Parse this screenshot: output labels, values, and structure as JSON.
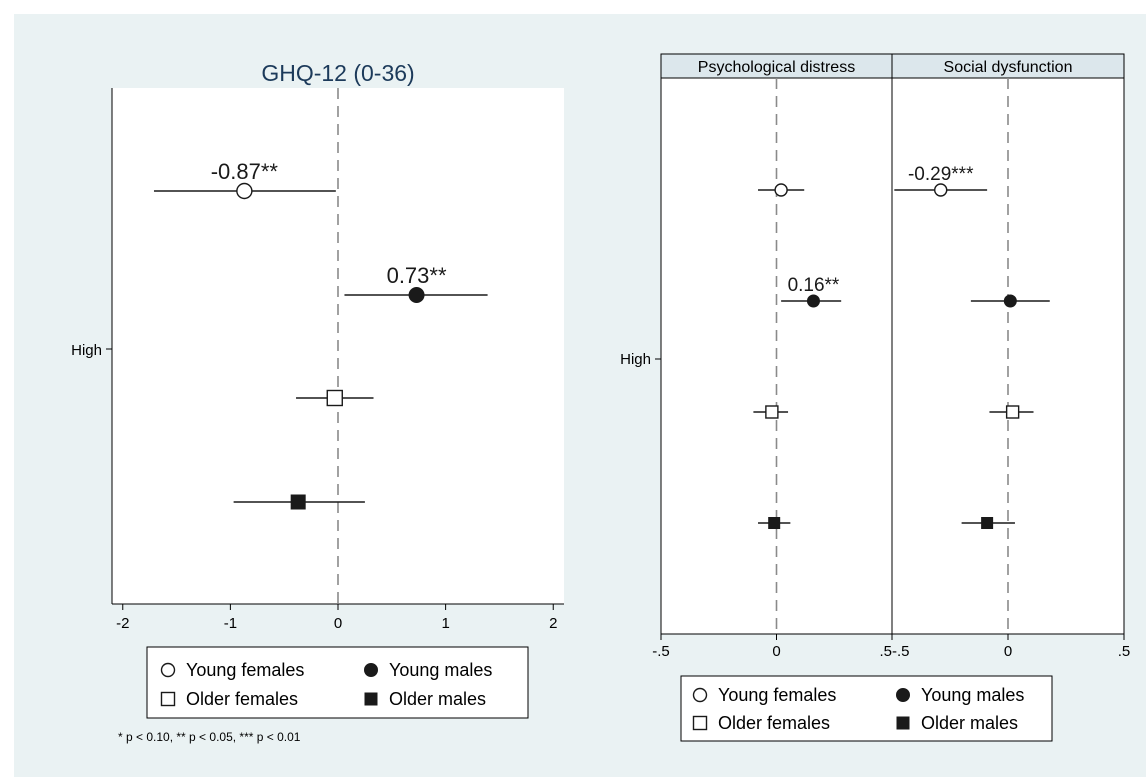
{
  "chart_data": [
    {
      "type": "scatter",
      "title": "GHQ-12 (0-36)",
      "category_label": "High",
      "xticks": [
        "-2",
        "-1",
        "0",
        "1",
        "2"
      ],
      "xlim": [
        -2.1,
        2.1
      ],
      "reference_line": 0,
      "series": [
        {
          "name": "Young females",
          "marker": "hollow-circle",
          "estimate": -0.87,
          "ci": [
            -1.71,
            -0.02
          ],
          "label": "-0.87**"
        },
        {
          "name": "Young males",
          "marker": "filled-circle",
          "estimate": 0.73,
          "ci": [
            0.06,
            1.39
          ],
          "label": "0.73**"
        },
        {
          "name": "Older females",
          "marker": "hollow-square",
          "estimate": -0.03,
          "ci": [
            -0.39,
            0.33
          ],
          "label": ""
        },
        {
          "name": "Older males",
          "marker": "filled-square",
          "estimate": -0.37,
          "ci": [
            -0.97,
            0.25
          ],
          "label": ""
        }
      ],
      "note": "* p < 0.10, ** p < 0.05, *** p < 0.01"
    },
    {
      "type": "scatter",
      "panel": "Psychological distress",
      "category_label": "High",
      "xticks": [
        "-.5",
        "0",
        ".5"
      ],
      "xlim": [
        -0.5,
        0.5
      ],
      "reference_line": 0,
      "series": [
        {
          "name": "Young females",
          "marker": "hollow-circle",
          "estimate": 0.02,
          "ci": [
            -0.08,
            0.12
          ],
          "label": ""
        },
        {
          "name": "Young males",
          "marker": "filled-circle",
          "estimate": 0.16,
          "ci": [
            0.02,
            0.28
          ],
          "label": "0.16**"
        },
        {
          "name": "Older females",
          "marker": "hollow-square",
          "estimate": -0.02,
          "ci": [
            -0.1,
            0.05
          ],
          "label": ""
        },
        {
          "name": "Older males",
          "marker": "filled-square",
          "estimate": -0.01,
          "ci": [
            -0.08,
            0.06
          ],
          "label": ""
        }
      ]
    },
    {
      "type": "scatter",
      "panel": "Social dysfunction",
      "category_label": "High",
      "xticks": [
        "-.5",
        "0",
        ".5"
      ],
      "xlim": [
        -0.5,
        0.5
      ],
      "reference_line": 0,
      "series": [
        {
          "name": "Young females",
          "marker": "hollow-circle",
          "estimate": -0.29,
          "ci": [
            -0.49,
            -0.09
          ],
          "label": "-0.29***"
        },
        {
          "name": "Young males",
          "marker": "filled-circle",
          "estimate": 0.01,
          "ci": [
            -0.16,
            0.18
          ],
          "label": ""
        },
        {
          "name": "Older females",
          "marker": "hollow-square",
          "estimate": 0.02,
          "ci": [
            -0.08,
            0.11
          ],
          "label": ""
        },
        {
          "name": "Older males",
          "marker": "filled-square",
          "estimate": -0.09,
          "ci": [
            -0.2,
            0.03
          ],
          "label": ""
        }
      ]
    }
  ],
  "legend": [
    "Young females",
    "Young males",
    "Older females",
    "Older males"
  ],
  "colors": {
    "background": "#eaf2f3",
    "title": "#1c3a5a",
    "strip": "#dce7ec",
    "marker": "#1a1a1a"
  }
}
